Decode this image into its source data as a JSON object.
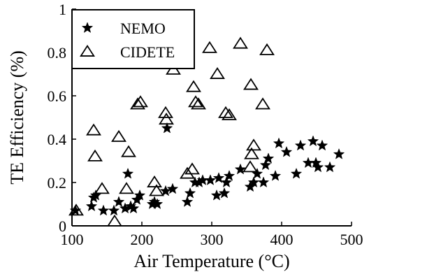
{
  "chart_data": {
    "type": "scatter",
    "title": "",
    "xlabel": "Air Temperature (°C)",
    "ylabel": "TE Efficiency (%)",
    "xlim": [
      100,
      500
    ],
    "ylim": [
      0,
      1
    ],
    "xticks": [
      100,
      200,
      300,
      400,
      500
    ],
    "yticks": [
      0,
      0.2,
      0.4,
      0.6,
      0.8,
      1
    ],
    "xtick_labels": [
      "100",
      "200",
      "300",
      "400",
      "500"
    ],
    "ytick_labels": [
      "0",
      "0.2",
      "0.4",
      "0.6",
      "0.8",
      "1"
    ],
    "grid": false,
    "legend_position": "top-left",
    "series": [
      {
        "name": "NEMO",
        "marker": "star",
        "color": "#000000",
        "points": [
          [
            105,
            0.07
          ],
          [
            128,
            0.09
          ],
          [
            131,
            0.13
          ],
          [
            134,
            0.14
          ],
          [
            145,
            0.07
          ],
          [
            160,
            0.07
          ],
          [
            167,
            0.11
          ],
          [
            176,
            0.08
          ],
          [
            180,
            0.24
          ],
          [
            184,
            0.09
          ],
          [
            188,
            0.08
          ],
          [
            193,
            0.12
          ],
          [
            197,
            0.14
          ],
          [
            215,
            0.1
          ],
          [
            218,
            0.11
          ],
          [
            222,
            0.1
          ],
          [
            234,
            0.16
          ],
          [
            236,
            0.45
          ],
          [
            244,
            0.17
          ],
          [
            265,
            0.11
          ],
          [
            269,
            0.15
          ],
          [
            276,
            0.2
          ],
          [
            282,
            0.2
          ],
          [
            287,
            0.21
          ],
          [
            298,
            0.21
          ],
          [
            307,
            0.14
          ],
          [
            310,
            0.22
          ],
          [
            318,
            0.15
          ],
          [
            321,
            0.2
          ],
          [
            325,
            0.23
          ],
          [
            341,
            0.26
          ],
          [
            355,
            0.18
          ],
          [
            360,
            0.2
          ],
          [
            365,
            0.24
          ],
          [
            374,
            0.2
          ],
          [
            377,
            0.28
          ],
          [
            381,
            0.31
          ],
          [
            391,
            0.23
          ],
          [
            396,
            0.38
          ],
          [
            407,
            0.34
          ],
          [
            421,
            0.24
          ],
          [
            427,
            0.37
          ],
          [
            438,
            0.29
          ],
          [
            445,
            0.39
          ],
          [
            449,
            0.29
          ],
          [
            452,
            0.27
          ],
          [
            458,
            0.37
          ],
          [
            469,
            0.27
          ],
          [
            482,
            0.33
          ]
        ]
      },
      {
        "name": "CIDETE",
        "marker": "triangle",
        "color": "#000000",
        "points": [
          [
            106,
            0.07
          ],
          [
            131,
            0.44
          ],
          [
            133,
            0.32
          ],
          [
            143,
            0.17
          ],
          [
            161,
            0.02
          ],
          [
            167,
            0.41
          ],
          [
            178,
            0.17
          ],
          [
            181,
            0.34
          ],
          [
            194,
            0.56
          ],
          [
            198,
            0.57
          ],
          [
            218,
            0.2
          ],
          [
            221,
            0.16
          ],
          [
            234,
            0.52
          ],
          [
            235,
            0.49
          ],
          [
            245,
            0.72
          ],
          [
            265,
            0.24
          ],
          [
            272,
            0.26
          ],
          [
            274,
            0.64
          ],
          [
            277,
            0.57
          ],
          [
            281,
            0.56
          ],
          [
            297,
            0.82
          ],
          [
            308,
            0.7
          ],
          [
            320,
            0.52
          ],
          [
            325,
            0.51
          ],
          [
            341,
            0.84
          ],
          [
            355,
            0.27
          ],
          [
            356,
            0.65
          ],
          [
            357,
            0.33
          ],
          [
            360,
            0.37
          ],
          [
            373,
            0.56
          ],
          [
            379,
            0.81
          ]
        ]
      }
    ]
  }
}
